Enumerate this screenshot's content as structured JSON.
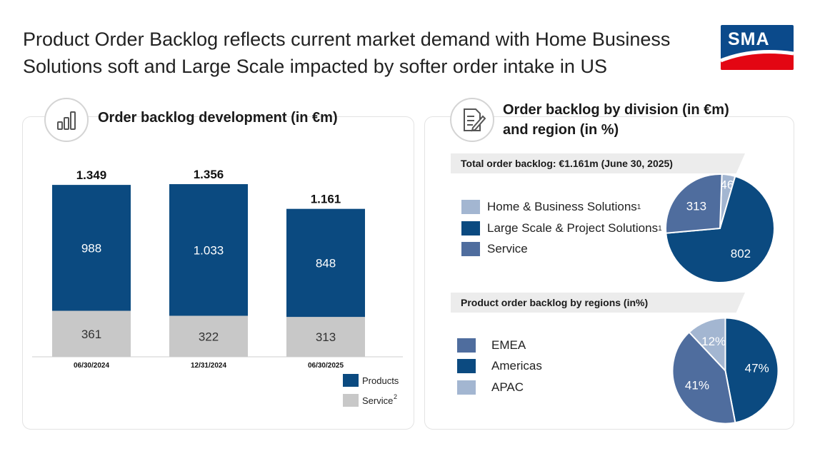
{
  "title": "Product Order Backlog reflects current market demand with Home Business Solutions soft and Large Scale impacted by softer order intake in US",
  "logo_text": "SMA",
  "colors": {
    "products": "#0b4a80",
    "service": "#c8c8c8",
    "home_business": "#a3b6d1",
    "large_scale": "#0b4a80",
    "service_div": "#4f6d9e",
    "emea": "#4f6d9e",
    "americas": "#0b4a80",
    "apac": "#a3b6d1"
  },
  "left_panel": {
    "title": "Order backlog development (in €m)",
    "icon": "bar-chart-icon"
  },
  "right_panel": {
    "title_line1": "Order backlog by division (in €m)",
    "title_line2": "and region (in %)",
    "icon": "document-edit-icon",
    "total_band": "Total order backlog: €1.161m (June 30, 2025)",
    "regions_band": "Product order backlog by regions (in%)"
  },
  "chart_data": [
    {
      "type": "bar",
      "title": "Order backlog development (in €m)",
      "categories": [
        "06/30/2024",
        "12/31/2024",
        "06/30/2025"
      ],
      "totals": [
        "1.349",
        "1.356",
        "1.161"
      ],
      "series": [
        {
          "name": "Service",
          "values": [
            361,
            322,
            313
          ],
          "labels": [
            "361",
            "322",
            "313"
          ]
        },
        {
          "name": "Products",
          "values": [
            988,
            1033,
            848
          ],
          "labels": [
            "988",
            "1.033",
            "848"
          ]
        }
      ],
      "legend": [
        {
          "label": "Products"
        },
        {
          "label": "Service",
          "sup": "2"
        }
      ],
      "legend_position": "bottom-right",
      "grid": false
    },
    {
      "type": "pie",
      "title": "Order backlog by division (in €m)",
      "slices": [
        {
          "name": "Home & Business Solutions",
          "sup": "1",
          "value": 46,
          "label": "46"
        },
        {
          "name": "Large Scale & Project Solutions",
          "sup": "1",
          "value": 802,
          "label": "802"
        },
        {
          "name": "Service",
          "value": 313,
          "label": "313"
        }
      ],
      "legend_position": "left"
    },
    {
      "type": "pie",
      "title": "Product order backlog by regions (in%)",
      "slices": [
        {
          "name": "Americas",
          "value": 47,
          "label": "47%"
        },
        {
          "name": "EMEA",
          "value": 41,
          "label": "41%"
        },
        {
          "name": "APAC",
          "value": 12,
          "label": "12%"
        }
      ],
      "legend_order": [
        "EMEA",
        "Americas",
        "APAC"
      ],
      "legend_position": "left"
    }
  ]
}
